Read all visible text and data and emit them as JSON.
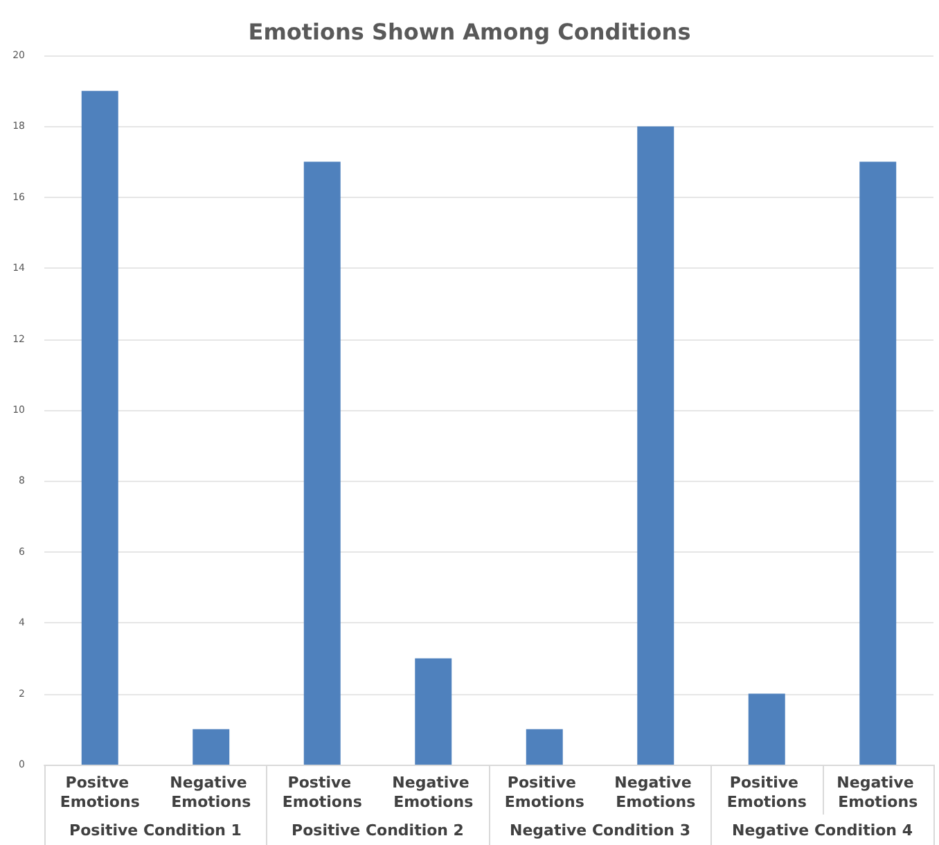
{
  "chart_data": {
    "type": "bar",
    "title": "Emotions Shown Among Conditions",
    "categories": [
      "Positve Emotions",
      "Negative Emotions",
      "Postive Emotions",
      "Negative Emotions",
      "Positive Emotions",
      "Negative Emotions",
      "Positive Emotions",
      "Negative Emotions"
    ],
    "values": [
      19,
      1,
      17,
      3,
      1,
      18,
      2,
      17
    ],
    "color": "#4f81bd",
    "annotations": [
      "Positive Condition 1",
      "Positive Condition 2",
      "Negative Condition 3",
      "Negative Condition 4"
    ],
    "ylim": [
      0,
      20
    ],
    "yticks": [
      0,
      2,
      4,
      6,
      8,
      10,
      12,
      14,
      16,
      18,
      20
    ],
    "grid": "y"
  }
}
